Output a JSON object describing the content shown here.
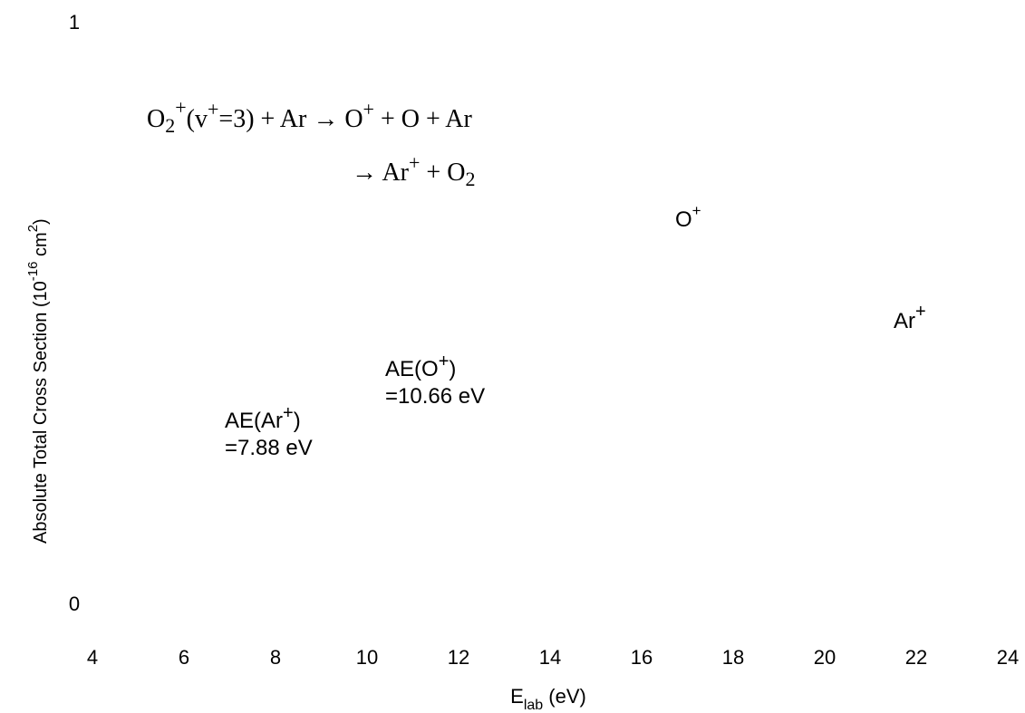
{
  "chart_data": {
    "type": "scatter",
    "title": "",
    "xlabel": {
      "main": "E",
      "sub": "lab",
      "rest": " (eV)"
    },
    "ylabel": {
      "main": "Absolute Total Cross Section (10",
      "exp1": "-16",
      "mid": " cm",
      "exp2": "2",
      "end": ")"
    },
    "xlim": [
      4,
      24
    ],
    "ylim": [
      0,
      1
    ],
    "x_ticks": [
      "4",
      "6",
      "8",
      "10",
      "12",
      "14",
      "16",
      "18",
      "20",
      "22",
      "24"
    ],
    "y_ticks": [
      "0",
      "1"
    ],
    "grid": false,
    "series": [],
    "annotations": {
      "reaction_line1": {
        "a": "O",
        "a_sub": "2",
        "a_sup": "+",
        "b": "(v",
        "b_sup": "+",
        "c": "=3) + Ar → O",
        "c_sup": "+",
        "d": " + O + Ar"
      },
      "reaction_line2": {
        "a": "→ Ar",
        "a_sup": "+",
        "b": " + O",
        "b_sub": "2"
      },
      "o_plus_label": {
        "base": "O",
        "sup": "+"
      },
      "ar_plus_label": {
        "base": "Ar",
        "sup": "+"
      },
      "ae_o_plus": {
        "line1_a": "AE(O",
        "line1_sup": "+",
        "line1_b": ")",
        "line2": "=10.66 eV"
      },
      "ae_ar_plus": {
        "line1_a": "AE(Ar",
        "line1_sup": "+",
        "line1_b": ")",
        "line2": "=7.88 eV"
      }
    }
  }
}
